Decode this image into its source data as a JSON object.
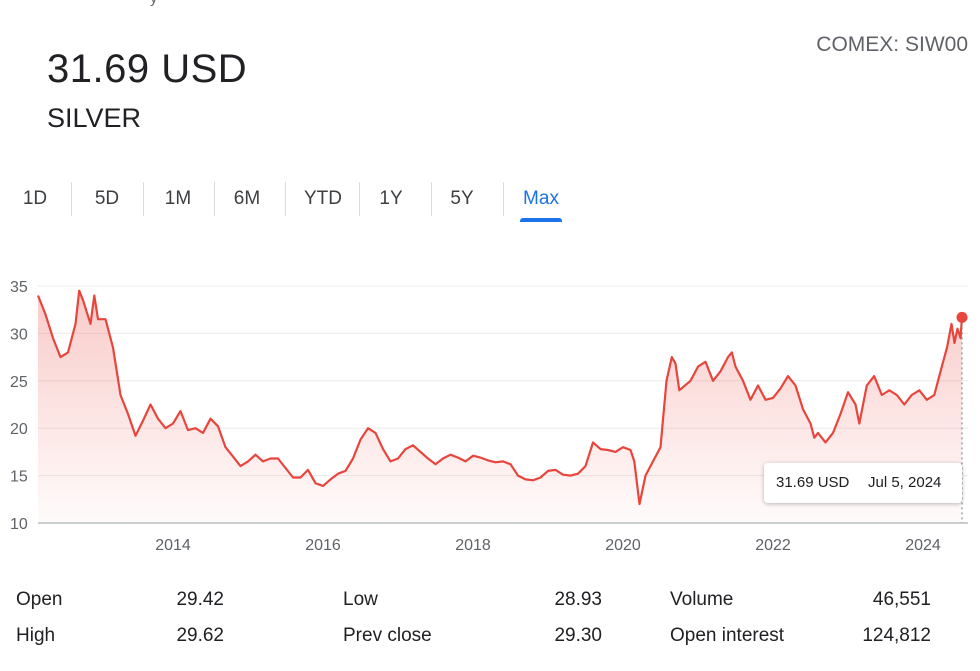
{
  "header": {
    "price": "31.69 USD",
    "name": "SILVER",
    "exchange": "COMEX: SIW00",
    "cut_off_text": "y"
  },
  "tabs": [
    {
      "label": "1D",
      "active": false
    },
    {
      "label": "5D",
      "active": false
    },
    {
      "label": "1M",
      "active": false
    },
    {
      "label": "6M",
      "active": false
    },
    {
      "label": "YTD",
      "active": false
    },
    {
      "label": "1Y",
      "active": false
    },
    {
      "label": "5Y",
      "active": false
    },
    {
      "label": "Max",
      "active": true
    }
  ],
  "tooltip": {
    "value": "31.69 USD",
    "date": "Jul 5, 2024"
  },
  "stats": [
    {
      "label": "Open",
      "value": "29.42"
    },
    {
      "label": "High",
      "value": "29.62"
    },
    {
      "label": "Low",
      "value": "28.93"
    },
    {
      "label": "Prev close",
      "value": "29.30"
    },
    {
      "label": "Volume",
      "value": "46,551"
    },
    {
      "label": "Open interest",
      "value": "124,812"
    }
  ],
  "colors": {
    "line": "#e8453c",
    "accent": "#1a73e8",
    "grid": "#ececec"
  },
  "chart_data": {
    "type": "area",
    "ylim": [
      10,
      35
    ],
    "xlim": [
      2012.2,
      2024.6
    ],
    "yticks": [
      "10",
      "15",
      "20",
      "25",
      "30",
      "35"
    ],
    "xticks": [
      "2014",
      "2016",
      "2018",
      "2020",
      "2022",
      "2024"
    ],
    "grid": true,
    "series": [
      {
        "values": [
          [
            2012.2,
            34.0
          ],
          [
            2012.3,
            32.0
          ],
          [
            2012.4,
            29.5
          ],
          [
            2012.5,
            27.5
          ],
          [
            2012.6,
            28.0
          ],
          [
            2012.7,
            31.0
          ],
          [
            2012.75,
            34.5
          ],
          [
            2012.8,
            33.5
          ],
          [
            2012.9,
            31.0
          ],
          [
            2012.95,
            34.0
          ],
          [
            2013.0,
            31.5
          ],
          [
            2013.1,
            31.5
          ],
          [
            2013.2,
            28.5
          ],
          [
            2013.3,
            23.5
          ],
          [
            2013.4,
            21.5
          ],
          [
            2013.5,
            19.2
          ],
          [
            2013.6,
            20.8
          ],
          [
            2013.7,
            22.5
          ],
          [
            2013.8,
            21.0
          ],
          [
            2013.9,
            20.0
          ],
          [
            2014.0,
            20.5
          ],
          [
            2014.1,
            21.8
          ],
          [
            2014.2,
            19.8
          ],
          [
            2014.3,
            20.0
          ],
          [
            2014.4,
            19.5
          ],
          [
            2014.5,
            21.0
          ],
          [
            2014.6,
            20.2
          ],
          [
            2014.7,
            18.0
          ],
          [
            2014.8,
            17.0
          ],
          [
            2014.9,
            16.0
          ],
          [
            2015.0,
            16.5
          ],
          [
            2015.1,
            17.2
          ],
          [
            2015.2,
            16.5
          ],
          [
            2015.3,
            16.8
          ],
          [
            2015.4,
            16.8
          ],
          [
            2015.5,
            15.8
          ],
          [
            2015.6,
            14.8
          ],
          [
            2015.7,
            14.8
          ],
          [
            2015.8,
            15.6
          ],
          [
            2015.9,
            14.2
          ],
          [
            2016.0,
            13.9
          ],
          [
            2016.1,
            14.6
          ],
          [
            2016.2,
            15.2
          ],
          [
            2016.3,
            15.5
          ],
          [
            2016.4,
            16.8
          ],
          [
            2016.5,
            18.8
          ],
          [
            2016.6,
            20.0
          ],
          [
            2016.7,
            19.5
          ],
          [
            2016.8,
            17.8
          ],
          [
            2016.9,
            16.5
          ],
          [
            2017.0,
            16.8
          ],
          [
            2017.1,
            17.8
          ],
          [
            2017.2,
            18.2
          ],
          [
            2017.3,
            17.5
          ],
          [
            2017.4,
            16.8
          ],
          [
            2017.5,
            16.2
          ],
          [
            2017.6,
            16.8
          ],
          [
            2017.7,
            17.2
          ],
          [
            2017.8,
            16.9
          ],
          [
            2017.9,
            16.5
          ],
          [
            2018.0,
            17.1
          ],
          [
            2018.1,
            16.9
          ],
          [
            2018.2,
            16.6
          ],
          [
            2018.3,
            16.4
          ],
          [
            2018.4,
            16.5
          ],
          [
            2018.5,
            16.2
          ],
          [
            2018.6,
            15.0
          ],
          [
            2018.7,
            14.6
          ],
          [
            2018.8,
            14.5
          ],
          [
            2018.9,
            14.8
          ],
          [
            2019.0,
            15.5
          ],
          [
            2019.1,
            15.6
          ],
          [
            2019.2,
            15.1
          ],
          [
            2019.3,
            15.0
          ],
          [
            2019.4,
            15.2
          ],
          [
            2019.5,
            16.0
          ],
          [
            2019.6,
            18.5
          ],
          [
            2019.7,
            17.8
          ],
          [
            2019.8,
            17.7
          ],
          [
            2019.9,
            17.5
          ],
          [
            2020.0,
            18.0
          ],
          [
            2020.1,
            17.7
          ],
          [
            2020.15,
            16.5
          ],
          [
            2020.22,
            12.0
          ],
          [
            2020.3,
            15.0
          ],
          [
            2020.4,
            16.5
          ],
          [
            2020.5,
            18.0
          ],
          [
            2020.58,
            25.0
          ],
          [
            2020.65,
            27.5
          ],
          [
            2020.7,
            26.8
          ],
          [
            2020.75,
            24.0
          ],
          [
            2020.9,
            25.0
          ],
          [
            2021.0,
            26.5
          ],
          [
            2021.1,
            27.0
          ],
          [
            2021.2,
            25.0
          ],
          [
            2021.3,
            26.0
          ],
          [
            2021.4,
            27.5
          ],
          [
            2021.45,
            28.0
          ],
          [
            2021.5,
            26.5
          ],
          [
            2021.6,
            25.0
          ],
          [
            2021.7,
            23.0
          ],
          [
            2021.8,
            24.5
          ],
          [
            2021.9,
            23.0
          ],
          [
            2022.0,
            23.2
          ],
          [
            2022.1,
            24.2
          ],
          [
            2022.2,
            25.5
          ],
          [
            2022.3,
            24.5
          ],
          [
            2022.4,
            22.0
          ],
          [
            2022.5,
            20.5
          ],
          [
            2022.55,
            19.0
          ],
          [
            2022.6,
            19.5
          ],
          [
            2022.7,
            18.5
          ],
          [
            2022.8,
            19.5
          ],
          [
            2022.9,
            21.5
          ],
          [
            2023.0,
            23.8
          ],
          [
            2023.1,
            22.5
          ],
          [
            2023.15,
            20.5
          ],
          [
            2023.25,
            24.5
          ],
          [
            2023.35,
            25.5
          ],
          [
            2023.45,
            23.5
          ],
          [
            2023.55,
            24.0
          ],
          [
            2023.65,
            23.5
          ],
          [
            2023.75,
            22.5
          ],
          [
            2023.85,
            23.5
          ],
          [
            2023.95,
            24.0
          ],
          [
            2024.05,
            23.0
          ],
          [
            2024.15,
            23.5
          ],
          [
            2024.25,
            26.5
          ],
          [
            2024.32,
            28.5
          ],
          [
            2024.38,
            31.0
          ],
          [
            2024.42,
            29.0
          ],
          [
            2024.46,
            30.5
          ],
          [
            2024.5,
            29.5
          ],
          [
            2024.52,
            31.69
          ]
        ]
      }
    ]
  }
}
